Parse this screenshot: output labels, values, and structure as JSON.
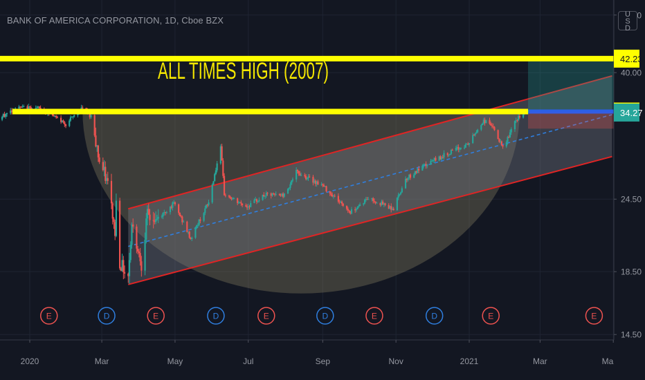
{
  "header": {
    "title": "BANK OF AMERICA CORPORATION, 1D, Cboe BZX",
    "currency": "USD"
  },
  "annotations": {
    "ath_text": "ALL TIMES HIGH (2007)"
  },
  "colors": {
    "background": "#131722",
    "grid": "#1f2432",
    "axis_text": "#9598a1",
    "up_candle": "#26a69a",
    "down_candle": "#ef5350",
    "yellow_line": "#ffff00",
    "channel_line": "#e02424",
    "channel_fill": "#787b86",
    "midline": "#2f7fe0",
    "cup_fill": "#8c8464",
    "price_badge_teal": "#26a69a",
    "label_yellow": "#ffff00"
  },
  "chart_data": {
    "type": "candlestick",
    "title": "BANK OF AMERICA CORPORATION, 1D, Cboe BZX",
    "y_scale": "log",
    "ylim": [
      14.2,
      53
    ],
    "y_ticks": [
      {
        "value": 14.5,
        "label": "14.50"
      },
      {
        "value": 18.5,
        "label": "18.50"
      },
      {
        "value": 24.5,
        "label": "24.50"
      },
      {
        "value": 40.0,
        "label": "40.00"
      },
      {
        "value": 50.0,
        "label": "50.00"
      }
    ],
    "x_ticks": [
      "2020",
      "Mar",
      "May",
      "Jul",
      "Sep",
      "Nov",
      "2021",
      "Mar",
      "Ma"
    ],
    "price_labels": [
      {
        "value": 42.23,
        "label": "42.23",
        "style": "yellow"
      },
      {
        "value": 34.4,
        "label": "34.40",
        "style": "yellow"
      },
      {
        "value": 34.27,
        "label": "34.27",
        "style": "teal"
      }
    ],
    "horizontal_levels": [
      {
        "value": 42.23,
        "name": "ALL TIMES HIGH (2007)"
      },
      {
        "value": 34.4
      }
    ],
    "events": [
      {
        "date": "2020-01-17",
        "type": "E"
      },
      {
        "date": "2020-03-05",
        "type": "D"
      },
      {
        "date": "2020-04-15",
        "type": "E"
      },
      {
        "date": "2020-06-04",
        "type": "D"
      },
      {
        "date": "2020-07-16",
        "type": "E"
      },
      {
        "date": "2020-09-03",
        "type": "D"
      },
      {
        "date": "2020-10-14",
        "type": "E"
      },
      {
        "date": "2020-12-03",
        "type": "D"
      },
      {
        "date": "2021-01-19",
        "type": "E"
      },
      {
        "date": "2021-04-15",
        "type": "E"
      }
    ],
    "channel": {
      "upper": [
        {
          "date": "2020-03-23",
          "value": 23.6
        },
        {
          "date": "2021-04-30",
          "value": 39.5
        }
      ],
      "lower": [
        {
          "date": "2020-03-23",
          "value": 17.6
        },
        {
          "date": "2021-04-30",
          "value": 28.9
        }
      ],
      "mid": [
        {
          "date": "2020-03-23",
          "value": 20.4
        },
        {
          "date": "2021-04-30",
          "value": 34.0
        }
      ]
    },
    "cup": {
      "rim_left": {
        "date": "2020-02-14",
        "value": 34.4
      },
      "rim_right": {
        "date": "2021-02-12",
        "value": 34.4
      },
      "bottom": {
        "date": "2020-08-26",
        "value": 17.0
      }
    },
    "position": {
      "entry": 34.4,
      "target": 42.23,
      "stop": 32.2,
      "start_date": "2021-02-19",
      "end_date": "2021-05-07"
    },
    "series": [
      {
        "name": "BAC",
        "key_points": [
          {
            "date": "2019-12-02",
            "value": 32.9
          },
          {
            "date": "2019-12-20",
            "value": 34.9
          },
          {
            "date": "2020-01-10",
            "value": 34.8
          },
          {
            "date": "2020-01-31",
            "value": 32.8
          },
          {
            "date": "2020-02-14",
            "value": 34.9
          },
          {
            "date": "2020-02-21",
            "value": 33.8
          },
          {
            "date": "2020-02-28",
            "value": 28.4
          },
          {
            "date": "2020-03-06",
            "value": 26.0
          },
          {
            "date": "2020-03-12",
            "value": 21.5
          },
          {
            "date": "2020-03-13",
            "value": 24.2
          },
          {
            "date": "2020-03-16",
            "value": 19.2
          },
          {
            "date": "2020-03-18",
            "value": 18.9
          },
          {
            "date": "2020-03-23",
            "value": 18.2
          },
          {
            "date": "2020-03-26",
            "value": 22.2
          },
          {
            "date": "2020-04-03",
            "value": 19.1
          },
          {
            "date": "2020-04-08",
            "value": 23.0
          },
          {
            "date": "2020-04-15",
            "value": 22.5
          },
          {
            "date": "2020-04-30",
            "value": 24.1
          },
          {
            "date": "2020-05-14",
            "value": 21.0
          },
          {
            "date": "2020-05-29",
            "value": 24.2
          },
          {
            "date": "2020-06-08",
            "value": 29.8
          },
          {
            "date": "2020-06-11",
            "value": 25.0
          },
          {
            "date": "2020-06-22",
            "value": 24.2
          },
          {
            "date": "2020-06-30",
            "value": 23.8
          },
          {
            "date": "2020-07-15",
            "value": 24.9
          },
          {
            "date": "2020-07-31",
            "value": 24.9
          },
          {
            "date": "2020-08-10",
            "value": 27.2
          },
          {
            "date": "2020-08-31",
            "value": 25.9
          },
          {
            "date": "2020-09-24",
            "value": 23.3
          },
          {
            "date": "2020-10-09",
            "value": 24.6
          },
          {
            "date": "2020-10-30",
            "value": 23.6
          },
          {
            "date": "2020-11-09",
            "value": 26.5
          },
          {
            "date": "2020-11-30",
            "value": 28.3
          },
          {
            "date": "2020-12-15",
            "value": 29.3
          },
          {
            "date": "2020-12-31",
            "value": 30.3
          },
          {
            "date": "2021-01-13",
            "value": 33.2
          },
          {
            "date": "2021-01-19",
            "value": 32.8
          },
          {
            "date": "2021-01-29",
            "value": 29.8
          },
          {
            "date": "2021-02-10",
            "value": 33.5
          },
          {
            "date": "2021-02-19",
            "value": 34.6
          }
        ]
      }
    ]
  }
}
